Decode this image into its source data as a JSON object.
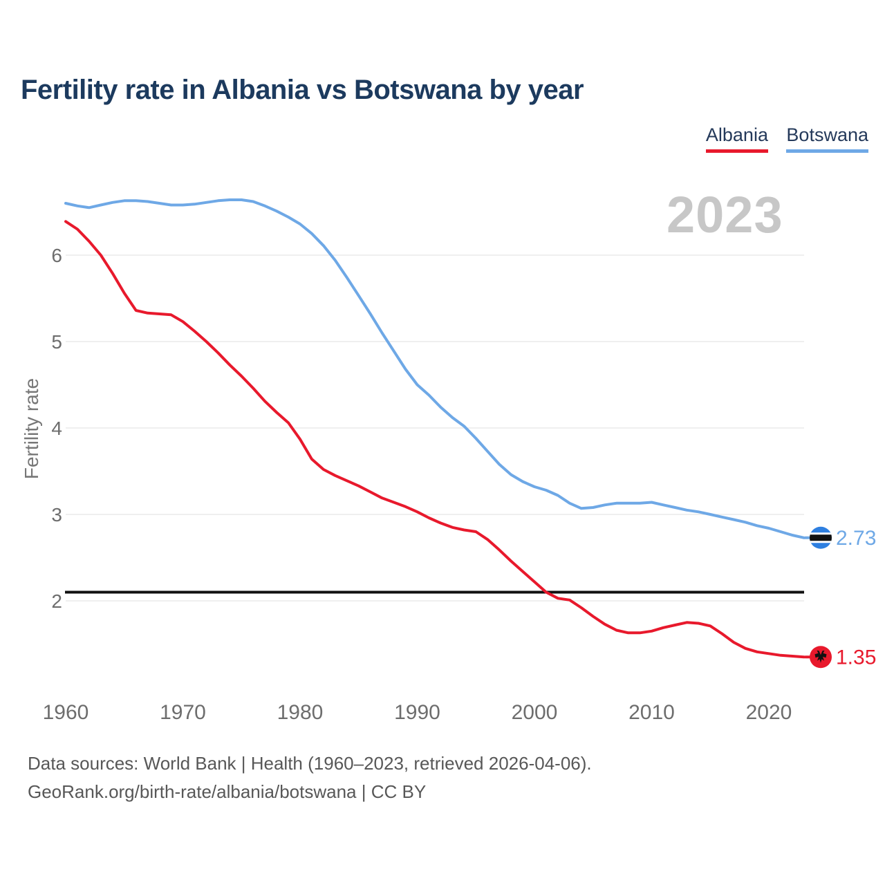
{
  "title": "Fertility rate in Albania vs Botswana by year",
  "watermark": "2023",
  "legend": {
    "items": [
      {
        "label": "Albania",
        "color": "#e8192c"
      },
      {
        "label": "Botswana",
        "color": "#6ea8e6"
      }
    ]
  },
  "footer": {
    "line1": "Data sources: World Bank | Health (1960–2023, retrieved 2026-04-06).",
    "line2": "GeoRank.org/birth-rate/albania/botswana | CC BY"
  },
  "chart_data": {
    "type": "line",
    "title": "Fertility rate in Albania vs Botswana by year",
    "xlabel": "",
    "ylabel": "Fertility rate",
    "grid": true,
    "legend_position": "top-right",
    "xlim": [
      1960,
      2023
    ],
    "ylim": [
      1.2,
      6.8
    ],
    "xticks": [
      1960,
      1970,
      1980,
      1990,
      2000,
      2010,
      2020
    ],
    "yticks": [
      2,
      3,
      4,
      5,
      6
    ],
    "reference_line": {
      "value": 2.1,
      "color": "#111111",
      "name": "replacement-level-fertility"
    },
    "x": [
      1960,
      1961,
      1962,
      1963,
      1964,
      1965,
      1966,
      1967,
      1968,
      1969,
      1970,
      1971,
      1972,
      1973,
      1974,
      1975,
      1976,
      1977,
      1978,
      1979,
      1980,
      1981,
      1982,
      1983,
      1984,
      1985,
      1986,
      1987,
      1988,
      1989,
      1990,
      1991,
      1992,
      1993,
      1994,
      1995,
      1996,
      1997,
      1998,
      1999,
      2000,
      2001,
      2002,
      2003,
      2004,
      2005,
      2006,
      2007,
      2008,
      2009,
      2010,
      2011,
      2012,
      2013,
      2014,
      2015,
      2016,
      2017,
      2018,
      2019,
      2020,
      2021,
      2022,
      2023
    ],
    "series": [
      {
        "name": "Albania",
        "color": "#e8192c",
        "marker_fill": "#e8192c",
        "marker_flag": "albania",
        "end_value": 1.35,
        "end_label": "1.35",
        "values": [
          6.39,
          6.3,
          6.16,
          6.0,
          5.79,
          5.56,
          5.36,
          5.33,
          5.32,
          5.31,
          5.23,
          5.12,
          5.0,
          4.87,
          4.73,
          4.6,
          4.46,
          4.31,
          4.18,
          4.06,
          3.87,
          3.64,
          3.52,
          3.45,
          3.39,
          3.33,
          3.26,
          3.19,
          3.14,
          3.09,
          3.03,
          2.96,
          2.9,
          2.85,
          2.82,
          2.8,
          2.71,
          2.59,
          2.46,
          2.34,
          2.22,
          2.1,
          2.03,
          2.01,
          1.92,
          1.82,
          1.73,
          1.66,
          1.63,
          1.63,
          1.65,
          1.69,
          1.72,
          1.75,
          1.74,
          1.71,
          1.62,
          1.52,
          1.45,
          1.41,
          1.39,
          1.37,
          1.36,
          1.35
        ]
      },
      {
        "name": "Botswana",
        "color": "#6ea8e6",
        "marker_fill": "#2e7fe0",
        "marker_flag": "botswana",
        "end_value": 2.73,
        "end_label": "2.73",
        "values": [
          6.6,
          6.57,
          6.55,
          6.58,
          6.61,
          6.63,
          6.63,
          6.62,
          6.6,
          6.58,
          6.58,
          6.59,
          6.61,
          6.63,
          6.64,
          6.64,
          6.62,
          6.57,
          6.51,
          6.44,
          6.36,
          6.25,
          6.11,
          5.94,
          5.74,
          5.53,
          5.32,
          5.1,
          4.89,
          4.68,
          4.5,
          4.38,
          4.24,
          4.12,
          4.02,
          3.88,
          3.73,
          3.58,
          3.46,
          3.38,
          3.32,
          3.28,
          3.22,
          3.13,
          3.07,
          3.08,
          3.11,
          3.13,
          3.13,
          3.13,
          3.14,
          3.11,
          3.08,
          3.05,
          3.03,
          3.0,
          2.97,
          2.94,
          2.91,
          2.87,
          2.84,
          2.8,
          2.76,
          2.73
        ]
      }
    ]
  }
}
